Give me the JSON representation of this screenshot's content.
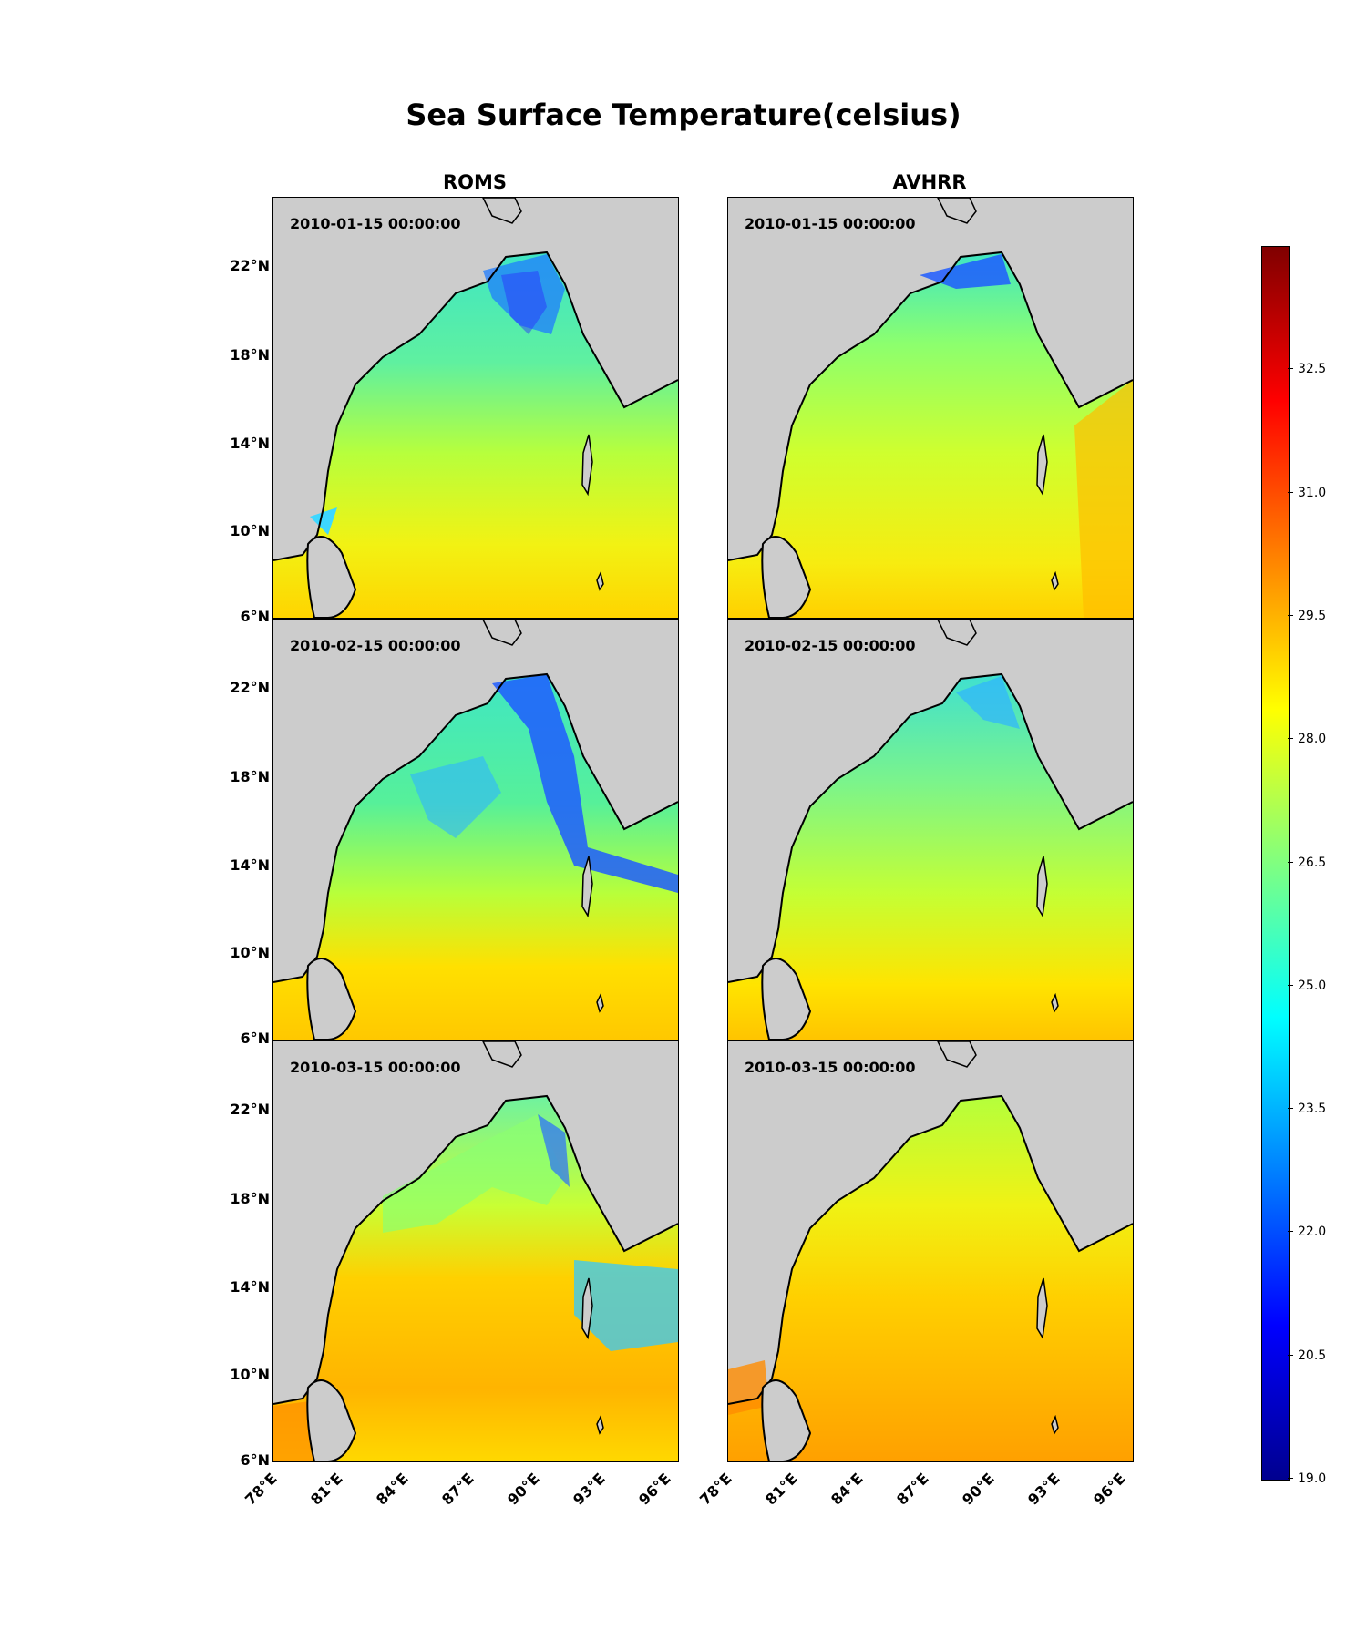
{
  "figure": {
    "title": "Sea Surface Temperature(celsius)",
    "columns": [
      "ROMS",
      "AVHRR"
    ]
  },
  "latitude_ticks": [
    "22°N",
    "18°N",
    "14°N",
    "10°N",
    "6°N"
  ],
  "longitude_ticks": [
    "78°E",
    "81°E",
    "84°E",
    "87°E",
    "90°E",
    "93°E",
    "96°E"
  ],
  "panels": [
    {
      "model": "ROMS",
      "date": "2010-01-15 00:00:00"
    },
    {
      "model": "AVHRR",
      "date": "2010-01-15 00:00:00"
    },
    {
      "model": "ROMS",
      "date": "2010-02-15 00:00:00"
    },
    {
      "model": "AVHRR",
      "date": "2010-02-15 00:00:00"
    },
    {
      "model": "ROMS",
      "date": "2010-03-15 00:00:00"
    },
    {
      "model": "AVHRR",
      "date": "2010-03-15 00:00:00"
    }
  ],
  "colorbar": {
    "min": 19.0,
    "max": 34.0,
    "colormap": "jet",
    "tick_labels": [
      "32.5",
      "31.0",
      "29.5",
      "28.0",
      "26.5",
      "25.0",
      "23.5",
      "22.0",
      "20.5",
      "19.0"
    ]
  },
  "colors": {
    "land": "#cccccc",
    "coastline": "#000000"
  }
}
